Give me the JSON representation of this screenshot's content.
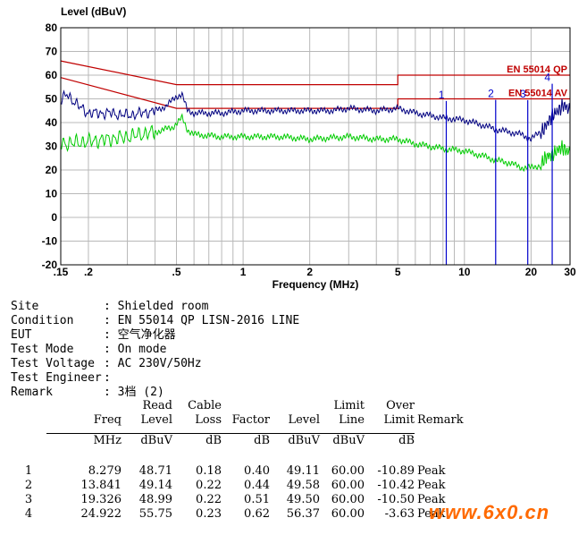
{
  "chart_data": {
    "type": "line",
    "title": "",
    "ylabel": "Level (dBuV)",
    "xlabel": "Frequency (MHz)",
    "x_scale": "log",
    "xlim": [
      0.15,
      30
    ],
    "ylim": [
      -20,
      80
    ],
    "y_ticks": [
      -20,
      -10,
      0,
      10,
      20,
      30,
      40,
      50,
      60,
      70,
      80
    ],
    "x_ticks": [
      {
        "v": 0.15,
        "label": ".15"
      },
      {
        "v": 0.2,
        "label": ".2"
      },
      {
        "v": 0.5,
        "label": ".5"
      },
      {
        "v": 1,
        "label": "1"
      },
      {
        "v": 2,
        "label": "2"
      },
      {
        "v": 5,
        "label": "5"
      },
      {
        "v": 10,
        "label": "10"
      },
      {
        "v": 20,
        "label": "20"
      },
      {
        "v": 30,
        "label": "30"
      }
    ],
    "grid": true,
    "limit_lines": [
      {
        "name": "EN 55014 QP",
        "points": [
          [
            0.15,
            66
          ],
          [
            0.5,
            56
          ],
          [
            5,
            56
          ],
          [
            5,
            60
          ],
          [
            30,
            60
          ]
        ]
      },
      {
        "name": "EN 55014 AV",
        "points": [
          [
            0.15,
            59
          ],
          [
            0.5,
            46
          ],
          [
            5,
            46
          ],
          [
            5,
            50
          ],
          [
            30,
            50
          ]
        ]
      }
    ],
    "series": [
      {
        "name": "",
        "color": "#000080",
        "points": [
          [
            0.15,
            49
          ],
          [
            0.16,
            52
          ],
          [
            0.18,
            47
          ],
          [
            0.2,
            44
          ],
          [
            0.25,
            44
          ],
          [
            0.3,
            43
          ],
          [
            0.35,
            44
          ],
          [
            0.4,
            45
          ],
          [
            0.45,
            47
          ],
          [
            0.5,
            51
          ],
          [
            0.53,
            52
          ],
          [
            0.56,
            45
          ],
          [
            0.6,
            44
          ],
          [
            0.8,
            44
          ],
          [
            1,
            45
          ],
          [
            1.5,
            45
          ],
          [
            2,
            45
          ],
          [
            2.5,
            45
          ],
          [
            3,
            46
          ],
          [
            4,
            45
          ],
          [
            5,
            46
          ],
          [
            6,
            44
          ],
          [
            7,
            43
          ],
          [
            8,
            42
          ],
          [
            10,
            41
          ],
          [
            12,
            39
          ],
          [
            14,
            37
          ],
          [
            16,
            36
          ],
          [
            18,
            35
          ],
          [
            20,
            33
          ],
          [
            22,
            36
          ],
          [
            24,
            40
          ],
          [
            26,
            45
          ],
          [
            28,
            47
          ],
          [
            30,
            45
          ]
        ]
      },
      {
        "name": "",
        "color": "#00cc00",
        "points": [
          [
            0.15,
            31
          ],
          [
            0.2,
            32
          ],
          [
            0.3,
            34
          ],
          [
            0.4,
            36
          ],
          [
            0.48,
            38
          ],
          [
            0.53,
            42
          ],
          [
            0.56,
            37
          ],
          [
            0.6,
            35
          ],
          [
            0.8,
            34
          ],
          [
            1,
            34
          ],
          [
            1.5,
            34
          ],
          [
            2,
            33
          ],
          [
            3,
            34
          ],
          [
            4,
            33
          ],
          [
            5,
            33
          ],
          [
            6,
            31
          ],
          [
            8,
            29
          ],
          [
            10,
            28
          ],
          [
            12,
            26
          ],
          [
            14,
            24
          ],
          [
            16,
            23
          ],
          [
            18,
            21
          ],
          [
            20,
            21
          ],
          [
            22,
            22
          ],
          [
            24,
            26
          ],
          [
            26,
            28
          ],
          [
            28,
            29
          ],
          [
            30,
            28
          ]
        ]
      }
    ],
    "markers": [
      {
        "label": "1",
        "freq": 8.279,
        "level": 49.11
      },
      {
        "label": "2",
        "freq": 13.841,
        "level": 49.58
      },
      {
        "label": "3",
        "freq": 19.326,
        "level": 49.5
      },
      {
        "label": "4",
        "freq": 24.922,
        "level": 56.37
      }
    ]
  },
  "info": [
    {
      "key": "Site",
      "value": ": Shielded room"
    },
    {
      "key": "Condition",
      "value": ": EN 55014 QP LISN-2016 LINE"
    },
    {
      "key": "EUT",
      "value": ": 空气净化器"
    },
    {
      "key": "Test Mode",
      "value": ": On mode"
    },
    {
      "key": "Test Voltage",
      "value": ": AC 230V/50Hz"
    },
    {
      "key": "Test Engineer",
      "value": ":"
    },
    {
      "key": "Remark",
      "value": ": 3档 (2)"
    }
  ],
  "table": {
    "header1": [
      "",
      "",
      "Read",
      "Cable",
      "",
      "",
      "Limit",
      "Over",
      ""
    ],
    "header2": [
      "",
      "Freq",
      "Level",
      "Loss",
      "Factor",
      "Level",
      "Line",
      "Limit",
      "Remark"
    ],
    "units": [
      "",
      "MHz",
      "dBuV",
      "dB",
      "dB",
      "dBuV",
      "dBuV",
      "dB",
      ""
    ],
    "rows": [
      [
        "1",
        "8.279",
        "48.71",
        "0.18",
        "0.40",
        "49.11",
        "60.00",
        "-10.89",
        "Peak"
      ],
      [
        "2",
        "13.841",
        "49.14",
        "0.22",
        "0.44",
        "49.58",
        "60.00",
        "-10.42",
        "Peak"
      ],
      [
        "3",
        "19.326",
        "48.99",
        "0.22",
        "0.51",
        "49.50",
        "60.00",
        "-10.50",
        "Peak"
      ],
      [
        "4",
        "24.922",
        "55.75",
        "0.23",
        "0.62",
        "56.37",
        "60.00",
        "-3.63",
        "Peak"
      ]
    ]
  },
  "watermark": "www.6x0.cn"
}
